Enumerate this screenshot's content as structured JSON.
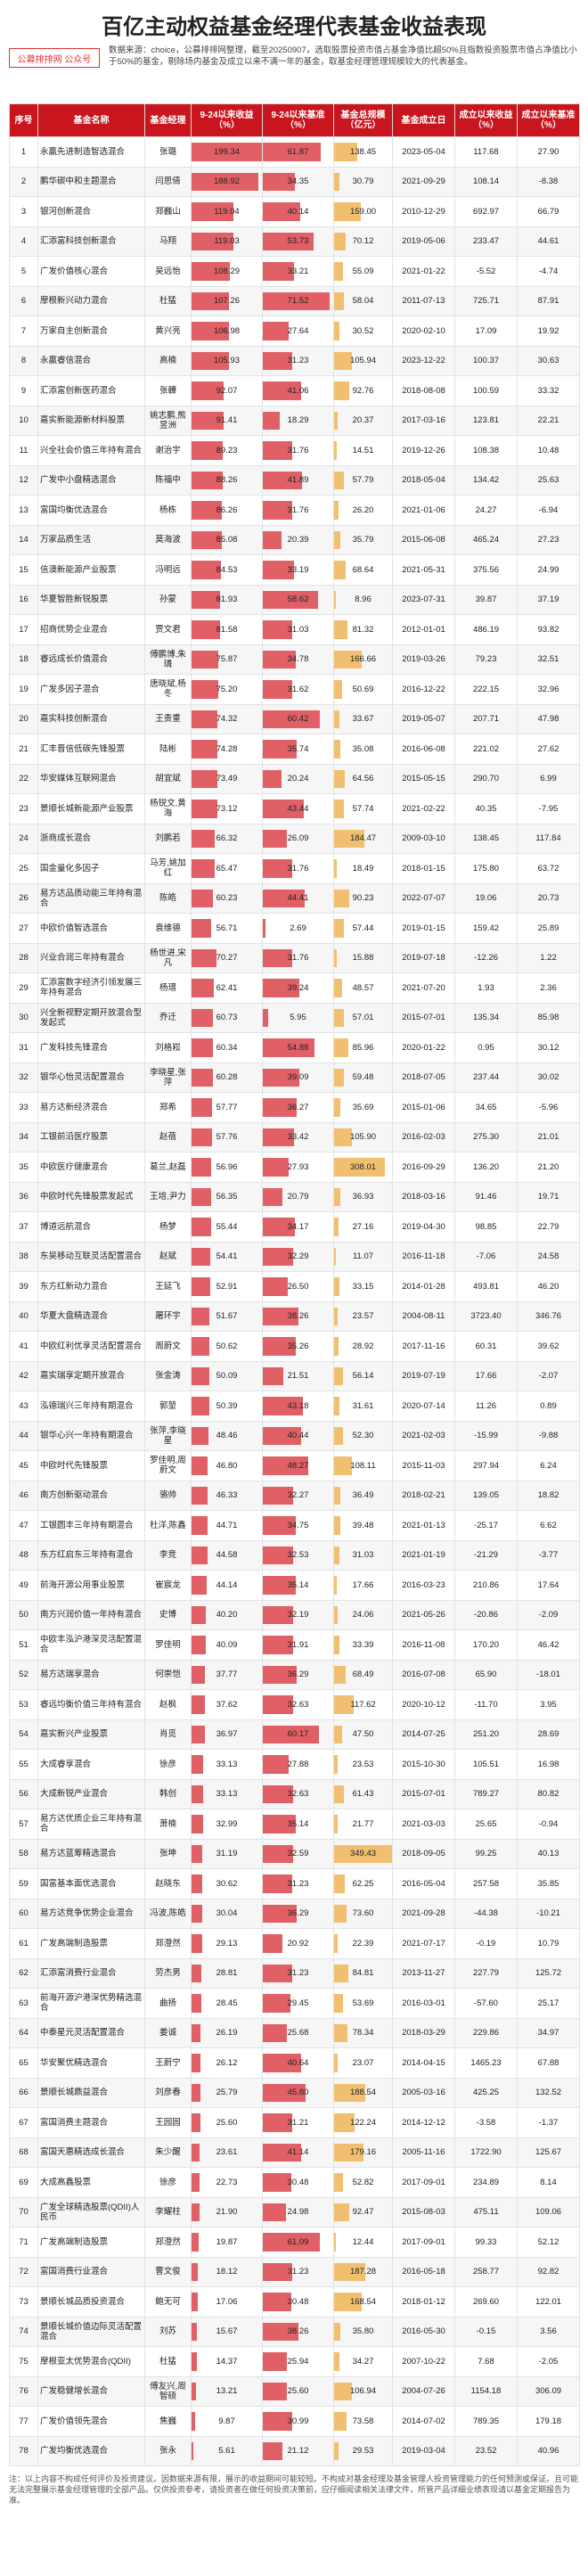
{
  "title": "百亿主动权益基金经理代表基金收益表现",
  "source_logo": "公募排排网 公众号",
  "note_top": "数据来源：choice，公募排排网整理，截至20250907，选取股票投资市值占基金净值比超50%且指数投资股票市值占净值比小于50%的基金，剔除场内基金及成立以来不满一年的基金，取基金经理管理规模较大的代表基金。",
  "headers": [
    "序号",
    "基金名称",
    "基金经理",
    "9-24以来收益（%）",
    "9-24以来基准（%）",
    "基金总规模（亿元）",
    "基金成立日",
    "成立以来收益（%）",
    "成立以来基准（%）"
  ],
  "rows": [
    [
      1,
      "永赢先进制造智选混合",
      "张璐",
      199.34,
      61.87,
      138.45,
      "2023-05-04",
      117.68,
      27.9
    ],
    [
      2,
      "鹏华碳中和主题混合",
      "闫思倩",
      188.92,
      34.35,
      30.79,
      "2021-09-29",
      108.14,
      -8.38
    ],
    [
      3,
      "银河创新混合",
      "郑巍山",
      119.04,
      40.14,
      159.0,
      "2010-12-29",
      692.97,
      66.79
    ],
    [
      4,
      "汇添富科技创新混合",
      "马翔",
      119.03,
      53.73,
      70.12,
      "2019-05-06",
      233.47,
      44.61
    ],
    [
      5,
      "广发价值核心混合",
      "吴远怡",
      108.29,
      33.21,
      55.09,
      "2021-01-22",
      -5.52,
      -4.74
    ],
    [
      6,
      "摩根新兴动力混合",
      "杜猛",
      107.26,
      71.52,
      58.04,
      "2011-07-13",
      725.71,
      87.91
    ],
    [
      7,
      "万家自主创新混合",
      "黄兴亮",
      106.98,
      27.64,
      30.52,
      "2020-02-10",
      17.09,
      19.92
    ],
    [
      8,
      "永赢睿信混合",
      "高楠",
      105.93,
      31.23,
      105.94,
      "2023-12-22",
      100.37,
      30.63
    ],
    [
      9,
      "汇添富创新医药混合",
      "张韡",
      92.07,
      41.06,
      92.76,
      "2018-08-08",
      100.59,
      33.32
    ],
    [
      10,
      "嘉实新能源新材料股票",
      "姚志鹏,熊昱洲",
      91.41,
      18.29,
      20.37,
      "2017-03-16",
      123.81,
      22.21
    ],
    [
      11,
      "兴全社会价值三年持有混合",
      "谢治宇",
      89.23,
      31.76,
      14.51,
      "2019-12-26",
      108.38,
      10.48
    ],
    [
      12,
      "广发中小盘精选混合",
      "陈福中",
      88.26,
      41.89,
      57.79,
      "2018-05-04",
      134.42,
      25.63
    ],
    [
      13,
      "富国均衡优选混合",
      "杨栋",
      86.26,
      31.76,
      26.2,
      "2021-01-06",
      24.27,
      -6.94
    ],
    [
      14,
      "万家品质生活",
      "莫海波",
      85.08,
      20.39,
      35.79,
      "2015-06-08",
      465.24,
      27.23
    ],
    [
      15,
      "信澳新能源产业股票",
      "冯明远",
      84.53,
      33.19,
      68.64,
      "2021-05-31",
      375.56,
      24.99
    ],
    [
      16,
      "华夏智胜新锐股票",
      "孙蒙",
      81.93,
      58.62,
      8.96,
      "2023-07-31",
      39.87,
      37.19
    ],
    [
      17,
      "招商优势企业混合",
      "贾文君",
      81.58,
      31.03,
      81.32,
      "2012-01-01",
      486.19,
      93.82
    ],
    [
      18,
      "睿远成长价值混合",
      "傅鹏博,朱璘",
      75.87,
      34.78,
      166.66,
      "2019-03-26",
      79.23,
      32.51
    ],
    [
      19,
      "广发多因子混合",
      "唐晓斌,杨冬",
      75.2,
      31.62,
      50.69,
      "2016-12-22",
      222.15,
      32.96
    ],
    [
      20,
      "嘉实科技创新混合",
      "王贵重",
      74.32,
      60.42,
      33.67,
      "2019-05-07",
      207.71,
      47.98
    ],
    [
      21,
      "汇丰晋信低碳先锋股票",
      "陆彬",
      74.28,
      35.74,
      35.08,
      "2016-06-08",
      221.02,
      27.62
    ],
    [
      22,
      "华安媒体互联网混合",
      "胡宜斌",
      73.49,
      20.24,
      64.56,
      "2015-05-15",
      290.7,
      6.99
    ],
    [
      23,
      "景顺长城新能源产业股票",
      "杨锐文,黄海",
      73.12,
      43.44,
      57.74,
      "2021-02-22",
      40.35,
      -7.95
    ],
    [
      24,
      "浙商成长混合",
      "刘鹏若",
      66.32,
      26.09,
      184.47,
      "2009-03-10",
      138.45,
      117.84
    ],
    [
      25,
      "国金量化多因子",
      "马芳,姚加红",
      65.47,
      31.76,
      18.49,
      "2018-01-15",
      175.8,
      63.72
    ],
    [
      26,
      "易方达品质动能三年持有混合",
      "陈皓",
      60.23,
      44.41,
      90.23,
      "2022-07-07",
      19.06,
      20.73
    ],
    [
      27,
      "中欧价值智选混合",
      "袁维德",
      56.71,
      2.69,
      57.44,
      "2019-01-15",
      159.42,
      25.89
    ],
    [
      28,
      "兴业合润三年持有混合",
      "杨世进,宋凡",
      70.27,
      31.76,
      15.88,
      "2019-07-18",
      -12.26,
      1.22
    ],
    [
      29,
      "汇添富数字经济引领发展三年持有混合",
      "杨瑨",
      62.41,
      39.24,
      48.57,
      "2021-07-20",
      1.93,
      2.36
    ],
    [
      30,
      "兴全新视野定期开放混合型发起式",
      "乔迁",
      60.73,
      5.95,
      57.01,
      "2015-07-01",
      135.34,
      85.98
    ],
    [
      31,
      "广发科技先锋混合",
      "刘格崧",
      60.34,
      54.88,
      85.96,
      "2020-01-22",
      0.95,
      30.12
    ],
    [
      32,
      "银华心怡灵活配置混合",
      "李晓星,张萍",
      60.28,
      39.09,
      59.48,
      "2018-07-05",
      237.44,
      30.02
    ],
    [
      33,
      "易方达新经济混合",
      "郑希",
      57.77,
      36.27,
      35.69,
      "2015-01-06",
      34.65,
      -5.96
    ],
    [
      34,
      "工银前沿医疗股票",
      "赵蓓",
      57.76,
      33.42,
      105.9,
      "2016-02-03",
      275.3,
      21.01
    ],
    [
      35,
      "中欧医疗健康混合",
      "葛兰,赵磊",
      56.96,
      27.93,
      308.01,
      "2016-09-29",
      136.2,
      21.2
    ],
    [
      36,
      "中欧时代先锋股票发起式",
      "王培,尹力",
      56.35,
      20.79,
      36.93,
      "2018-03-16",
      91.46,
      19.71
    ],
    [
      37,
      "博道远航混合",
      "杨梦",
      55.44,
      34.17,
      27.16,
      "2019-04-30",
      98.85,
      22.79
    ],
    [
      38,
      "东吴移动互联灵活配置混合",
      "赵斌",
      54.41,
      32.29,
      11.07,
      "2016-11-18",
      -7.06,
      24.58
    ],
    [
      39,
      "东方红新动力混合",
      "王延飞",
      52.91,
      26.5,
      33.15,
      "2014-01-28",
      493.81,
      46.2
    ],
    [
      40,
      "华夏大盘精选混合",
      "屠环宇",
      51.67,
      38.26,
      23.57,
      "2004-08-11",
      3723.4,
      346.76
    ],
    [
      41,
      "中欧红利优享灵活配置混合",
      "周蔚文",
      50.62,
      35.26,
      28.92,
      "2017-11-16",
      60.31,
      39.62
    ],
    [
      42,
      "嘉实瑞享定期开放混合",
      "张金涛",
      50.09,
      21.51,
      56.14,
      "2019-07-19",
      17.66,
      -2.07
    ],
    [
      43,
      "泓德瑞兴三年持有期混合",
      "郭堃",
      50.39,
      43.18,
      31.61,
      "2020-07-14",
      11.26,
      0.89
    ],
    [
      44,
      "银华心兴一年持有期混合",
      "张萍,李晓星",
      48.46,
      40.44,
      52.3,
      "2021-02-03",
      -15.99,
      -9.88
    ],
    [
      45,
      "中欧时代先锋股票",
      "罗佳明,周蔚文",
      46.8,
      48.27,
      108.11,
      "2015-11-03",
      297.94,
      6.24
    ],
    [
      46,
      "南方创新驱动混合",
      "骆帅",
      46.33,
      32.27,
      36.49,
      "2018-02-21",
      139.05,
      18.82
    ],
    [
      47,
      "工银圆丰三年持有期混合",
      "杜洋,陈鑫",
      44.71,
      34.75,
      39.48,
      "2021-01-13",
      -25.17,
      6.62
    ],
    [
      48,
      "东方红启东三年持有混合",
      "李竞",
      44.58,
      32.53,
      31.03,
      "2021-01-19",
      -21.29,
      -3.77
    ],
    [
      49,
      "前海开源公用事业股票",
      "崔宸龙",
      44.14,
      35.14,
      17.66,
      "2016-03-23",
      210.86,
      17.64
    ],
    [
      50,
      "南方兴润价值一年持有混合",
      "史博",
      40.2,
      32.19,
      24.06,
      "2021-05-26",
      -20.86,
      -2.09
    ],
    [
      51,
      "中欧丰泓沪港深灵活配置混合",
      "罗佳明",
      40.09,
      31.91,
      33.39,
      "2016-11-08",
      170.2,
      46.42
    ],
    [
      52,
      "易方达瑞享混合",
      "何崇恺",
      37.77,
      36.29,
      68.49,
      "2016-07-08",
      65.9,
      -18.01
    ],
    [
      53,
      "睿远均衡价值三年持有混合",
      "赵枫",
      37.62,
      32.63,
      117.62,
      "2020-10-12",
      -11.7,
      3.95
    ],
    [
      54,
      "嘉实新兴产业股票",
      "肖觅",
      36.97,
      60.17,
      47.5,
      "2014-07-25",
      251.2,
      28.69
    ],
    [
      55,
      "大成睿享混合",
      "徐彦",
      33.13,
      27.88,
      23.53,
      "2015-10-30",
      105.51,
      16.98
    ],
    [
      56,
      "大成新锐产业混合",
      "韩创",
      33.13,
      32.63,
      61.43,
      "2015-07-01",
      789.27,
      80.82
    ],
    [
      57,
      "易方达优质企业三年持有混合",
      "萧楠",
      32.99,
      35.14,
      21.77,
      "2021-03-03",
      25.65,
      -0.94
    ],
    [
      58,
      "易方达蓝筹精选混合",
      "张坤",
      31.19,
      32.59,
      349.43,
      "2018-09-05",
      99.25,
      40.13
    ],
    [
      59,
      "国富基本面优选混合",
      "赵晓东",
      30.62,
      31.23,
      62.25,
      "2016-05-04",
      257.58,
      35.85
    ],
    [
      60,
      "易方达竞争优势企业混合",
      "冯波,陈皓",
      30.04,
      36.29,
      73.6,
      "2021-09-28",
      -44.38,
      -10.21
    ],
    [
      61,
      "广发高端制造股票",
      "郑澄然",
      29.13,
      20.92,
      22.39,
      "2021-07-17",
      -0.19,
      10.79
    ],
    [
      62,
      "汇添富消费行业混合",
      "劳杰男",
      28.81,
      31.23,
      84.81,
      "2013-11-27",
      227.79,
      125.72
    ],
    [
      63,
      "前海开源沪港深优势精选混合",
      "曲扬",
      28.45,
      29.45,
      53.69,
      "2016-03-01",
      -57.6,
      25.17
    ],
    [
      64,
      "中泰星元灵活配置混合",
      "姜诚",
      26.19,
      25.68,
      78.34,
      "2018-03-29",
      229.86,
      34.97
    ],
    [
      65,
      "华安聚优精选混合",
      "王蔚宁",
      26.12,
      40.64,
      23.07,
      "2014-04-15",
      1465.23,
      67.88
    ],
    [
      66,
      "景顺长城鼎益混合",
      "刘彦春",
      25.79,
      45.8,
      188.54,
      "2005-03-16",
      425.25,
      132.52
    ],
    [
      67,
      "富国消费主题混合",
      "王园园",
      25.6,
      31.21,
      122.24,
      "2014-12-12",
      -3.58,
      -1.37
    ],
    [
      68,
      "富国天惠精选成长混合",
      "朱少醒",
      23.61,
      41.14,
      179.16,
      "2005-11-16",
      1722.9,
      125.67
    ],
    [
      69,
      "大成高鑫股票",
      "徐彦",
      22.73,
      30.48,
      52.82,
      "2017-09-01",
      234.89,
      8.14
    ],
    [
      70,
      "广发全球精选股票(QDII)人民币",
      "李耀柱",
      21.9,
      24.98,
      92.47,
      "2015-08-03",
      475.11,
      109.06
    ],
    [
      71,
      "广发高端制造股票",
      "郑澄然",
      19.87,
      61.09,
      12.44,
      "2017-09-01",
      99.33,
      52.12
    ],
    [
      72,
      "富国消费行业混合",
      "曹文俊",
      18.12,
      31.23,
      187.28,
      "2016-05-18",
      258.77,
      92.82
    ],
    [
      73,
      "景顺长城品质投资混合",
      "鲍无可",
      17.06,
      30.48,
      168.54,
      "2018-01-12",
      269.6,
      122.01
    ],
    [
      74,
      "景顺长城价值边际灵活配置混合",
      "刘苏",
      15.67,
      38.26,
      35.8,
      "2016-05-30",
      -0.15,
      3.56
    ],
    [
      75,
      "摩根亚太优势混合(QDII)",
      "杜猛",
      14.37,
      25.94,
      34.27,
      "2007-10-22",
      7.68,
      -2.05
    ],
    [
      76,
      "广发稳健增长混合",
      "傅友兴,周智硕",
      13.21,
      25.6,
      106.94,
      "2004-07-26",
      1154.18,
      306.09
    ],
    [
      77,
      "广发价值领先混合",
      "焦巍",
      9.87,
      30.99,
      73.58,
      "2014-07-02",
      789.35,
      179.18
    ],
    [
      78,
      "广发均衡优选混合",
      "张永",
      5.61,
      21.12,
      29.53,
      "2019-03-04",
      23.52,
      40.96
    ]
  ],
  "footnote": "注：以上内容不构成任何评价及投资建议。因数据来源有限，展示的收益期间可能较短。不构成对基金经理及基金管理人投资管理能力的任何预测或保证。且可能无法完整展示基金经理管理的全部产品。仅供投资参考，请投资者在做任何投资决策前，应仔细阅读相关法律文件，所管产品详细业绩表现请以基金定期报告为准。"
}
